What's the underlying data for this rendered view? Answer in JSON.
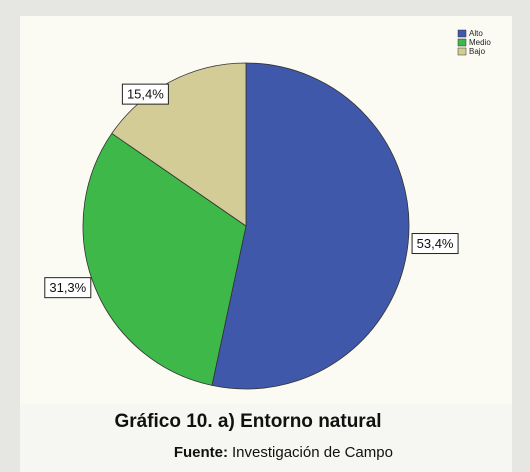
{
  "chart_data": {
    "type": "pie",
    "title": "Gráfico 10. a) Entorno natural",
    "source_label": "Fuente:",
    "source": "Investigación de Campo",
    "categories": [
      "Alto",
      "Medio",
      "Bajo"
    ],
    "values": [
      53.4,
      31.3,
      15.4
    ],
    "value_labels": [
      "53,4%",
      "31,3%",
      "15,4%"
    ],
    "colors": [
      "#3f58a9",
      "#3fb84a",
      "#d4cc96"
    ],
    "legend": "top-right"
  }
}
